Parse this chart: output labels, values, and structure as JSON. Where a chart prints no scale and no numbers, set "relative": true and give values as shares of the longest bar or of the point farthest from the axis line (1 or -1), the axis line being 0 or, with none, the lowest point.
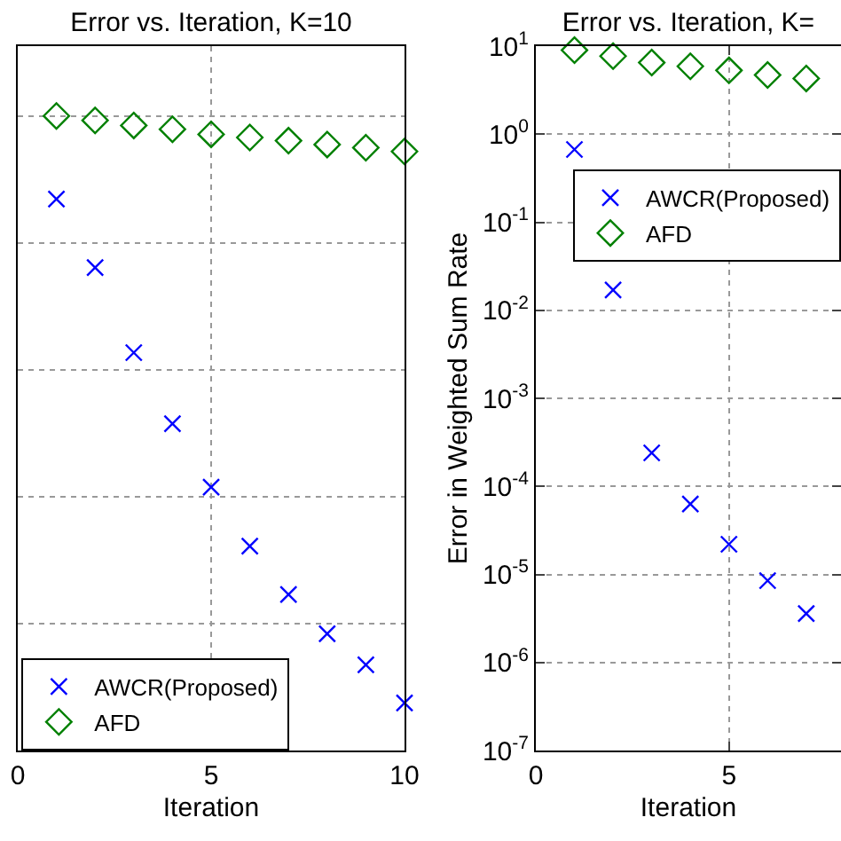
{
  "chart_data": [
    {
      "type": "scatter",
      "title": "Error vs. Iteration, K=10",
      "xlabel": "Iteration",
      "relative": true,
      "x": [
        1,
        2,
        3,
        4,
        5,
        6,
        7,
        8,
        9,
        10
      ],
      "xlim": [
        0,
        10
      ],
      "xticks": [
        0,
        5,
        10
      ],
      "grid": true,
      "legend": "bottom left",
      "series": [
        {
          "name": "AWCR(Proposed)",
          "color": "#0000ff",
          "marker": "cross",
          "values": [
            0.869,
            0.761,
            0.627,
            0.515,
            0.415,
            0.322,
            0.246,
            0.184,
            0.135,
            0.075
          ]
        },
        {
          "name": "AFD",
          "color": "#008000",
          "marker": "diamond",
          "values": [
            1,
            0.993,
            0.985,
            0.979,
            0.971,
            0.966,
            0.961,
            0.955,
            0.95,
            0.944
          ]
        }
      ]
    },
    {
      "type": "scatter",
      "title": "Error vs. Iteration, K=",
      "xlabel": "Iteration",
      "ylabel": "Error in Weighted Sum Rate",
      "log": true,
      "x": [
        1,
        2,
        3,
        4,
        5,
        6,
        7
      ],
      "xlim": [
        0,
        7.9
      ],
      "xticks": [
        0,
        5
      ],
      "ylim": [
        1e-07,
        10
      ],
      "yticks": [
        {
          "value": 1e-07,
          "label": "10$^{-7}$"
        },
        {
          "value": 1e-06,
          "label": "10$^{-6}$"
        },
        {
          "value": 1e-05,
          "label": "10$^{-5}$"
        },
        {
          "value": 0.0001,
          "label": "10$^{-4}$"
        },
        {
          "value": 0.001,
          "label": "10$^{-3}$"
        },
        {
          "value": 0.01,
          "label": "10$^{-2}$"
        },
        {
          "value": 0.1,
          "label": "10$^{-1}$"
        },
        {
          "value": 1,
          "label": "10$^{0}$"
        },
        {
          "value": 10,
          "label": "10$^{1}$"
        }
      ],
      "grid": true,
      "legend": "top right",
      "series": [
        {
          "name": "AWCR(Proposed)",
          "color": "#0000ff",
          "marker": "cross",
          "values": [
            0.67,
            0.017,
            0.00024,
            6.3e-05,
            2.2e-05,
            8.5e-06,
            3.6e-06
          ]
        },
        {
          "name": "AFD",
          "color": "#008000",
          "marker": "diamond",
          "values": [
            9.0,
            7.7,
            6.5,
            5.9,
            5.3,
            4.7,
            4.3
          ]
        }
      ]
    }
  ]
}
